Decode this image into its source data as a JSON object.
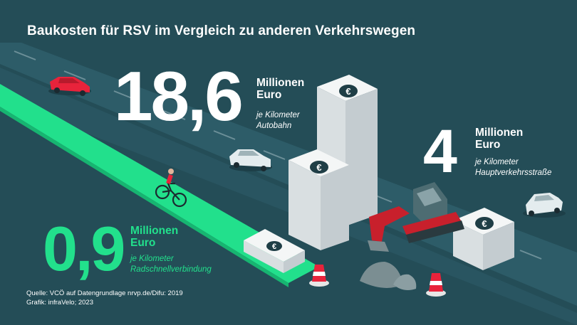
{
  "title": "Baukosten für RSV im Vergleich zu anderen Verkehrswegen",
  "items": [
    {
      "value": "18,6",
      "unit_1": "Millionen",
      "unit_2": "Euro",
      "desc_1": "je Kilometer",
      "desc_2": "Autobahn"
    },
    {
      "value": "4",
      "unit_1": "Millionen",
      "unit_2": "Euro",
      "desc_1": "je Kilometer",
      "desc_2": "Hauptverkehrsstraße"
    },
    {
      "value": "0,9",
      "unit_1": "Millionen",
      "unit_2": "Euro",
      "desc_1": "je Kilometer",
      "desc_2": "Radschnellverbindung"
    }
  ],
  "source": "Quelle: VCÖ auf Datengrundlage nrvp.de/Difu: 2019",
  "credit": "Grafik: infraVelo; 2023",
  "currency_symbol": "€",
  "colors": {
    "background": "#244d57",
    "road": "#2f5f6c",
    "bike_lane": "#22e08c",
    "car_red": "#e8233b",
    "excavator_red": "#c8202c",
    "cone": "#e8233b"
  }
}
